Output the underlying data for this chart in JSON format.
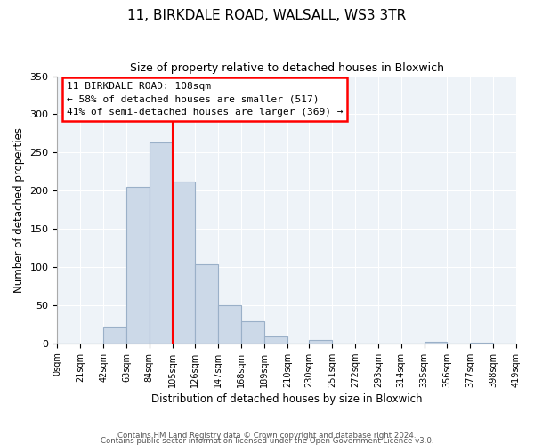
{
  "title": "11, BIRKDALE ROAD, WALSALL, WS3 3TR",
  "subtitle": "Size of property relative to detached houses in Bloxwich",
  "xlabel": "Distribution of detached houses by size in Bloxwich",
  "ylabel": "Number of detached properties",
  "bar_color": "#ccd9e8",
  "bar_edge_color": "#9ab0c8",
  "vline_x": 105,
  "vline_color": "red",
  "annotation_lines": [
    "11 BIRKDALE ROAD: 108sqm",
    "← 58% of detached houses are smaller (517)",
    "41% of semi-detached houses are larger (369) →"
  ],
  "bin_edges": [
    0,
    21,
    42,
    63,
    84,
    105,
    126,
    147,
    168,
    189,
    210,
    230,
    251,
    272,
    293,
    314,
    335,
    356,
    377,
    398,
    419
  ],
  "bin_counts": [
    0,
    0,
    22,
    205,
    263,
    212,
    103,
    50,
    29,
    9,
    0,
    4,
    0,
    0,
    0,
    0,
    2,
    0,
    1,
    0
  ],
  "ylim": [
    0,
    350
  ],
  "yticks": [
    0,
    50,
    100,
    150,
    200,
    250,
    300,
    350
  ],
  "tick_labels": [
    "0sqm",
    "21sqm",
    "42sqm",
    "63sqm",
    "84sqm",
    "105sqm",
    "126sqm",
    "147sqm",
    "168sqm",
    "189sqm",
    "210sqm",
    "230sqm",
    "251sqm",
    "272sqm",
    "293sqm",
    "314sqm",
    "335sqm",
    "356sqm",
    "377sqm",
    "398sqm",
    "419sqm"
  ],
  "footnote1": "Contains HM Land Registry data © Crown copyright and database right 2024.",
  "footnote2": "Contains public sector information licensed under the Open Government Licence v3.0.",
  "annotation_box_color": "white",
  "annotation_box_edge": "red",
  "figsize": [
    6.0,
    5.0
  ],
  "dpi": 100
}
